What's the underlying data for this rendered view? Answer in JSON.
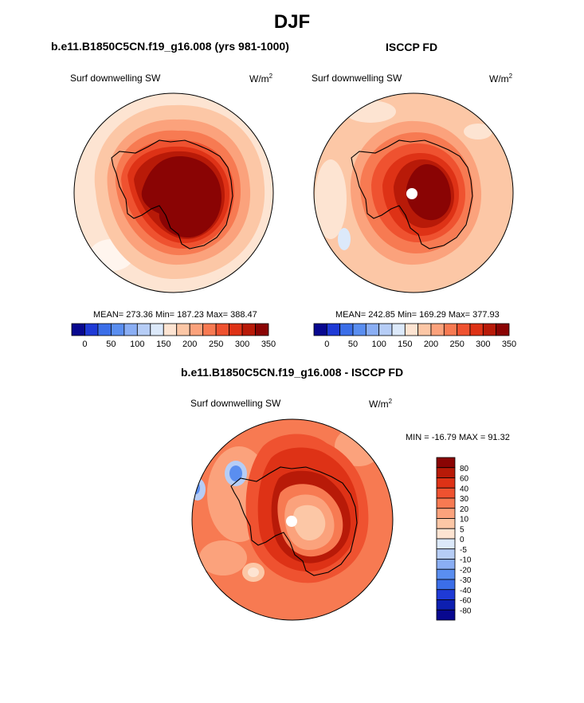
{
  "main_title": "DJF",
  "panels": [
    {
      "title": "b.e11.B1850C5CN.f19_g16.008 (yrs 981-1000)",
      "left_label": "Surf downwelling SW",
      "units_base": "W/m",
      "units_exp": "2",
      "stats": "MEAN= 273.36  Min= 187.23  Max= 388.47"
    },
    {
      "title": "ISCCP FD",
      "left_label": "Surf downwelling SW",
      "units_base": "W/m",
      "units_exp": "2",
      "stats": "MEAN= 242.85  Min= 169.29  Max= 377.93"
    },
    {
      "title": "b.e11.B1850C5CN.f19_g16.008 - ISCCP FD",
      "left_label": "Surf downwelling SW",
      "units_base": "W/m",
      "units_exp": "2",
      "stats": "MIN = -16.79 MAX =  91.32"
    }
  ],
  "chart_data": [
    {
      "type": "heatmap",
      "title": "b.e11.B1850C5CN.f19_g16.008 (yrs 981-1000)",
      "variable": "Surf downwelling SW",
      "units": "W/m2",
      "mean": 273.36,
      "min": 187.23,
      "max": 388.47,
      "colorbar_ticks": [
        "0",
        "50",
        "100",
        "150",
        "200",
        "250",
        "300",
        "350"
      ],
      "colorbar_colors": [
        "#08088f",
        "#1f3ad6",
        "#3b6ee8",
        "#5a8ef0",
        "#8aaef4",
        "#b6cdf6",
        "#dce9fa",
        "#fde4d2",
        "#fcc7a6",
        "#fba27c",
        "#f77a52",
        "#ef5230",
        "#de3216",
        "#b81a08",
        "#8a0404"
      ]
    },
    {
      "type": "heatmap",
      "title": "ISCCP FD",
      "variable": "Surf downwelling SW",
      "units": "W/m2",
      "mean": 242.85,
      "min": 169.29,
      "max": 377.93,
      "colorbar_ticks": [
        "0",
        "50",
        "100",
        "150",
        "200",
        "250",
        "300",
        "350"
      ],
      "colorbar_colors": [
        "#08088f",
        "#1f3ad6",
        "#3b6ee8",
        "#5a8ef0",
        "#8aaef4",
        "#b6cdf6",
        "#dce9fa",
        "#fde4d2",
        "#fcc7a6",
        "#fba27c",
        "#f77a52",
        "#ef5230",
        "#de3216",
        "#b81a08",
        "#8a0404"
      ]
    },
    {
      "type": "heatmap",
      "title": "b.e11.B1850C5CN.f19_g16.008 - ISCCP FD",
      "variable": "Surf downwelling SW",
      "units": "W/m2",
      "min": -16.79,
      "max": 91.32,
      "colorbar_ticks": [
        "80",
        "60",
        "40",
        "30",
        "20",
        "10",
        "5",
        "0",
        "-5",
        "-10",
        "-20",
        "-30",
        "-40",
        "-60",
        "-80"
      ],
      "colorbar_colors": [
        "#8a0404",
        "#b81a08",
        "#de3216",
        "#ef5230",
        "#f77a52",
        "#fba27c",
        "#fcc7a6",
        "#fde4d2",
        "#dce9fa",
        "#b6cdf6",
        "#8aaef4",
        "#5a8ef0",
        "#3b6ee8",
        "#1f3ad6",
        "#0d1fb0",
        "#08088f"
      ]
    }
  ]
}
